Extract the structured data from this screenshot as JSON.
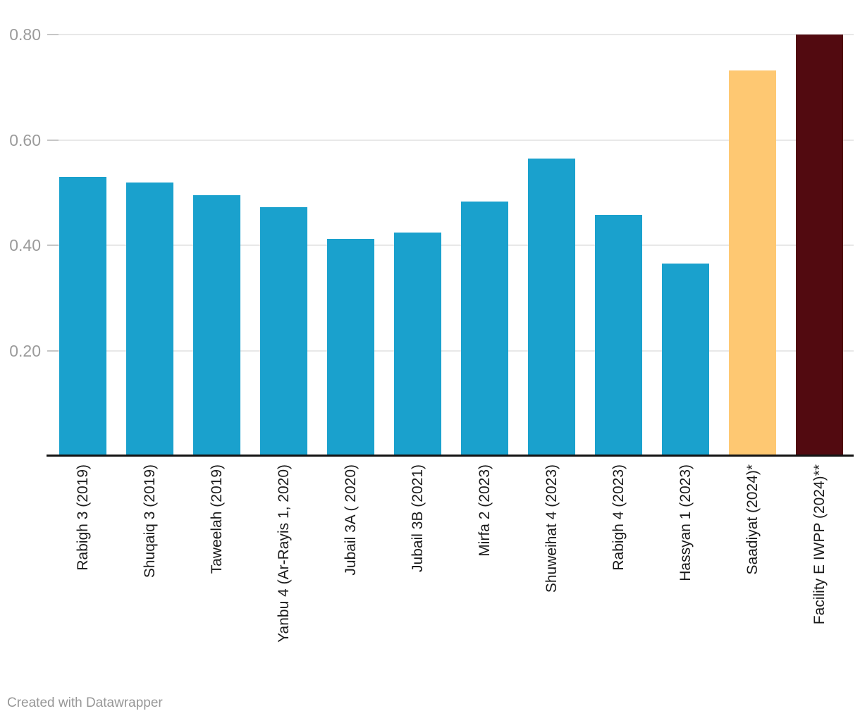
{
  "chart_data": {
    "type": "bar",
    "title": "",
    "xlabel": "",
    "ylabel": "",
    "categories": [
      "Rabigh 3 (2019)",
      "Shuqaiq 3 (2019)",
      "Taweelah (2019)",
      "Yanbu 4 (Ar-Rayis 1, 2020)",
      "Jubail 3A ( 2020)",
      "Jubail 3B (2021)",
      "Mirfa 2 (2023)",
      "Shuweihat 4 (2023)",
      "Rabigh 4 (2023)",
      "Hassyan 1 (2023)",
      "Saadiyat (2024)*",
      "Facility E IWPP (2024)**"
    ],
    "values": [
      0.53,
      0.52,
      0.495,
      0.473,
      0.413,
      0.425,
      0.483,
      0.565,
      0.458,
      0.366,
      0.731,
      0.8
    ],
    "bar_colors": [
      "#1aa1cd",
      "#1aa1cd",
      "#1aa1cd",
      "#1aa1cd",
      "#1aa1cd",
      "#1aa1cd",
      "#1aa1cd",
      "#1aa1cd",
      "#1aa1cd",
      "#1aa1cd",
      "#fec872",
      "#520a10"
    ],
    "ylim": [
      0,
      0.8
    ],
    "yticks": [
      {
        "value": 0.2,
        "label": "0.20"
      },
      {
        "value": 0.4,
        "label": "0.40"
      },
      {
        "value": 0.6,
        "label": "0.60"
      },
      {
        "value": 0.8,
        "label": "0.80"
      }
    ],
    "grid": "horizontal-on",
    "legend_position": "none",
    "x_label_rotation": "vertical-bottom-to-top"
  },
  "colors": {
    "bar_default": "#1aa1cd",
    "bar_highlight_orange": "#fec872",
    "bar_highlight_maroon": "#520a10",
    "gridline": "#e8e8e8",
    "axis_line": "#141414",
    "ytick_text": "#9b9b9b",
    "xlabel_text": "#1a1a1a",
    "credit_text": "#979797"
  },
  "footer": {
    "credit": "Created with Datawrapper"
  }
}
